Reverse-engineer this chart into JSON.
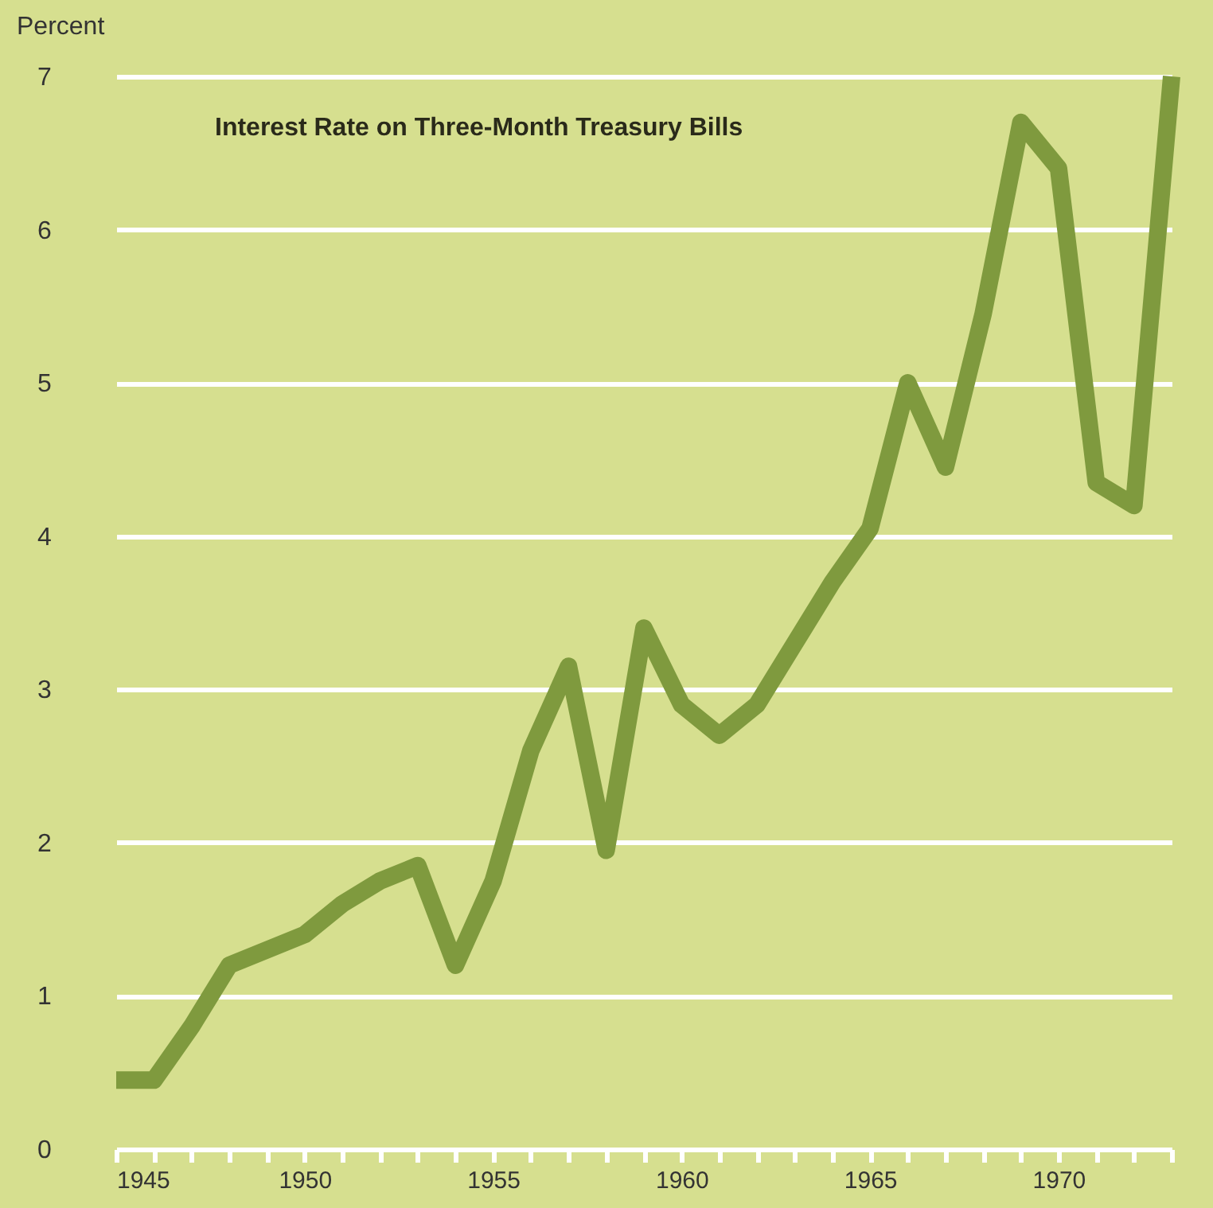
{
  "chart_data": {
    "type": "line",
    "title": "Interest Rate on Three-Month Treasury Bills",
    "ylabel": "Percent",
    "x": [
      1945,
      1946,
      1947,
      1948,
      1949,
      1950,
      1951,
      1952,
      1953,
      1954,
      1955,
      1956,
      1957,
      1958,
      1959,
      1960,
      1961,
      1962,
      1963,
      1964,
      1965,
      1966,
      1967,
      1968,
      1969,
      1970,
      1971,
      1972,
      1973
    ],
    "series": [
      {
        "color": "#7f9a3e",
        "values": [
          0.45,
          0.45,
          0.8,
          1.2,
          1.3,
          1.4,
          1.6,
          1.75,
          1.85,
          1.2,
          1.75,
          2.6,
          3.15,
          1.95,
          3.4,
          2.9,
          2.7,
          2.9,
          3.3,
          3.7,
          4.05,
          5.0,
          4.45,
          5.45,
          6.7,
          6.4,
          4.35,
          4.2,
          7.0
        ]
      }
    ],
    "xlim": [
      1945,
      1973
    ],
    "xticks": [
      1945,
      {
        "value": 1946,
        "label": null
      },
      {
        "value": 1947,
        "label": null
      },
      {
        "value": 1948,
        "label": null
      },
      {
        "value": 1949,
        "label": null
      },
      1950,
      {
        "value": 1951,
        "label": null
      },
      {
        "value": 1952,
        "label": null
      },
      {
        "value": 1953,
        "label": null
      },
      {
        "value": 1954,
        "label": null
      },
      1955,
      {
        "value": 1956,
        "label": null
      },
      {
        "value": 1957,
        "label": null
      },
      {
        "value": 1958,
        "label": null
      },
      {
        "value": 1959,
        "label": null
      },
      1960,
      {
        "value": 1961,
        "label": null
      },
      {
        "value": 1962,
        "label": null
      },
      {
        "value": 1963,
        "label": null
      },
      {
        "value": 1964,
        "label": null
      },
      1965,
      {
        "value": 1966,
        "label": null
      },
      {
        "value": 1967,
        "label": null
      },
      {
        "value": 1968,
        "label": null
      },
      {
        "value": 1969,
        "label": null
      },
      1970,
      {
        "value": 1971,
        "label": null
      },
      {
        "value": 1972,
        "label": null
      },
      {
        "value": 1973,
        "label": null
      }
    ],
    "ylim": [
      0,
      7
    ],
    "yticks": [
      0,
      1,
      2,
      3,
      4,
      5,
      6,
      7
    ],
    "grid": "y",
    "legend": false,
    "marker": "none",
    "line_style": "solid"
  }
}
